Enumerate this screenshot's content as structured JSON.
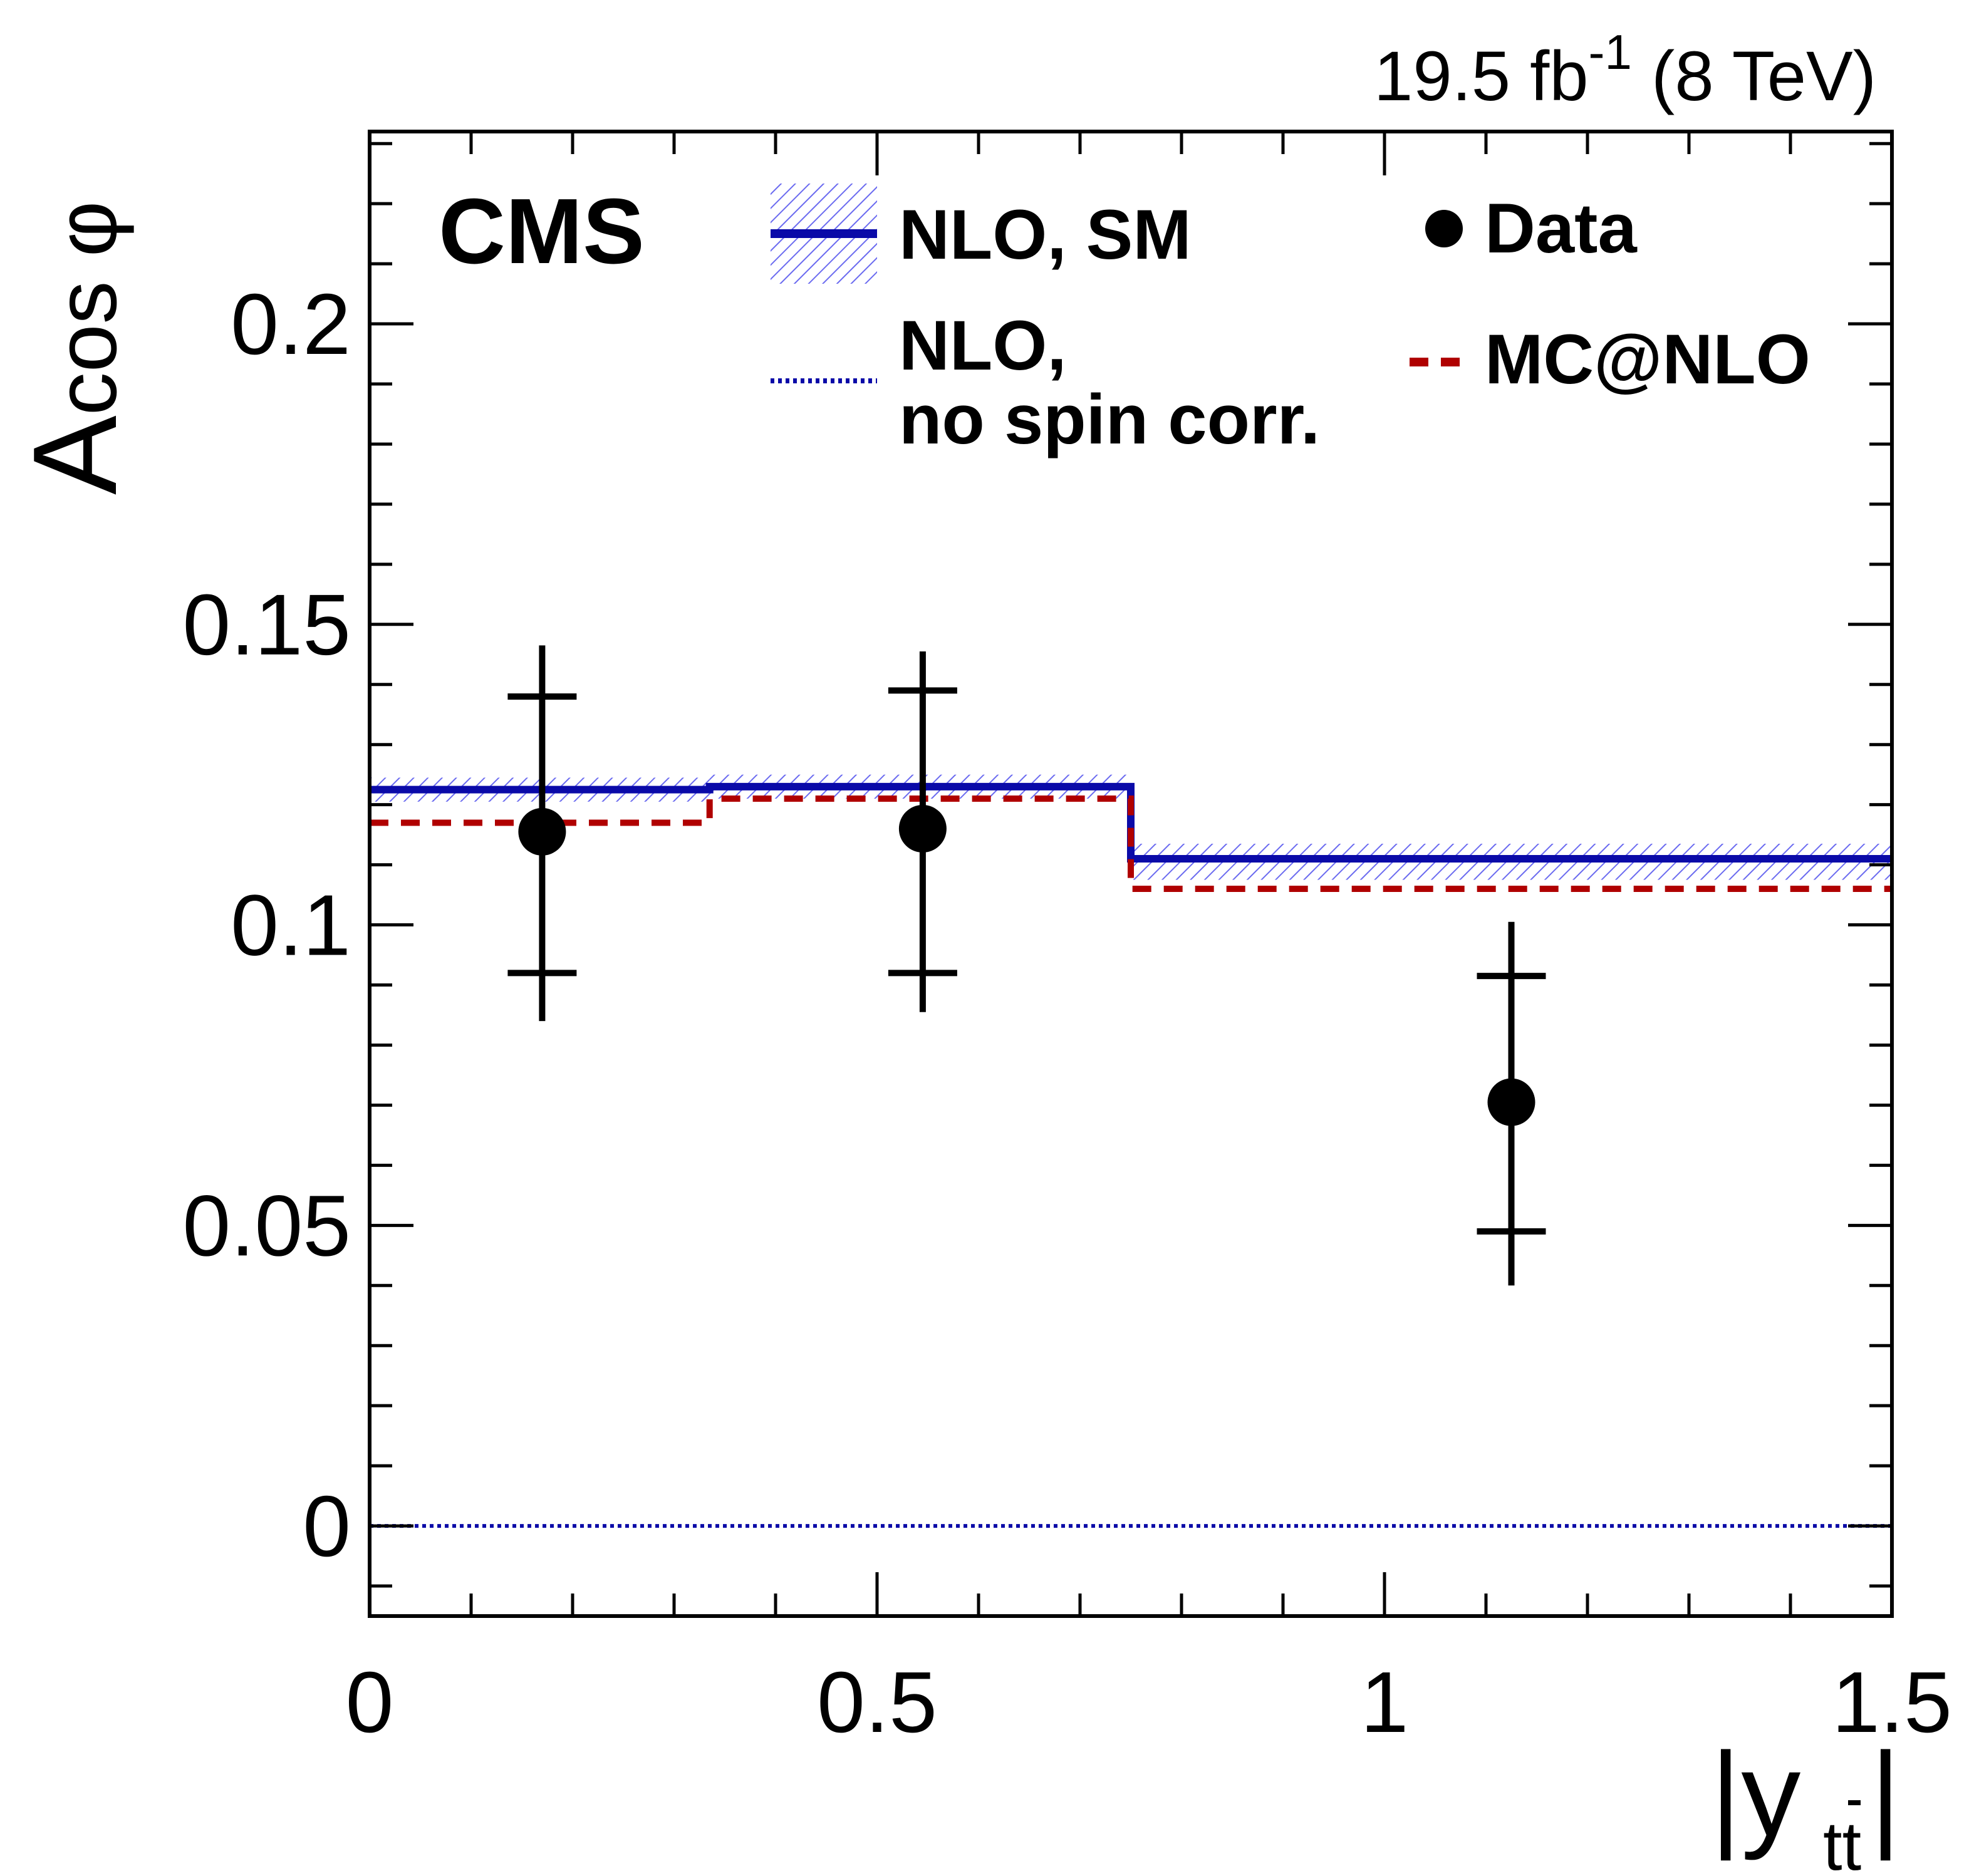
{
  "chart_data": {
    "type": "step",
    "title": "",
    "lumi_label": {
      "value": "19.5 fb",
      "exponent": "-1",
      "suffix": " (8 TeV)"
    },
    "experiment": "CMS",
    "xlabel": {
      "main": "|y",
      "sub": "t",
      "sub_bar": "t",
      "close": "|"
    },
    "ylabel": {
      "main": "A",
      "sub": "cos φ"
    },
    "xlim": [
      0,
      1.5
    ],
    "ylim": [
      -0.015,
      0.232
    ],
    "x_ticks": [
      0,
      0.5,
      1,
      1.5
    ],
    "x_tick_labels": [
      "0",
      "0.5",
      "1",
      "1.5"
    ],
    "y_ticks": [
      0,
      0.05,
      0.1,
      0.15,
      0.2
    ],
    "y_tick_labels": [
      "0",
      "0.05",
      "0.1",
      "0.15",
      "0.2"
    ],
    "bin_edges": [
      0,
      0.335,
      0.75,
      1.5
    ],
    "series": [
      {
        "name": "NLO, SM",
        "style": "solid",
        "color": "#0a0aa8",
        "values": [
          0.1225,
          0.123,
          0.111
        ],
        "band": [
          [
            0.1205,
            0.1245
          ],
          [
            0.121,
            0.125
          ],
          [
            0.1075,
            0.1135
          ]
        ],
        "band_color": "#6b6bf0"
      },
      {
        "name": "NLO, no spin corr.",
        "style": "dotted",
        "color": "#0a0aa8",
        "values": [
          0.0,
          0.0,
          0.0
        ]
      },
      {
        "name": "MC@NLO",
        "style": "dashed",
        "color": "#b00000",
        "values": [
          0.117,
          0.121,
          0.106
        ]
      }
    ],
    "data_points": {
      "name": "Data",
      "x": [
        0.17,
        0.545,
        1.125
      ],
      "y": [
        0.1155,
        0.116,
        0.0705
      ],
      "stat_err": [
        [
          0.092,
          0.138
        ],
        [
          0.092,
          0.139
        ],
        [
          0.049,
          0.0915
        ]
      ],
      "total_err": [
        [
          0.084,
          0.1465
        ],
        [
          0.0855,
          0.1455
        ],
        [
          0.04,
          0.1005
        ]
      ]
    },
    "legend": {
      "nlo_sm": "NLO, SM",
      "nlo_nospin_line1": "NLO,",
      "nlo_nospin_line2": "no spin corr.",
      "data": "Data",
      "mcnlo": "MC@NLO"
    }
  }
}
